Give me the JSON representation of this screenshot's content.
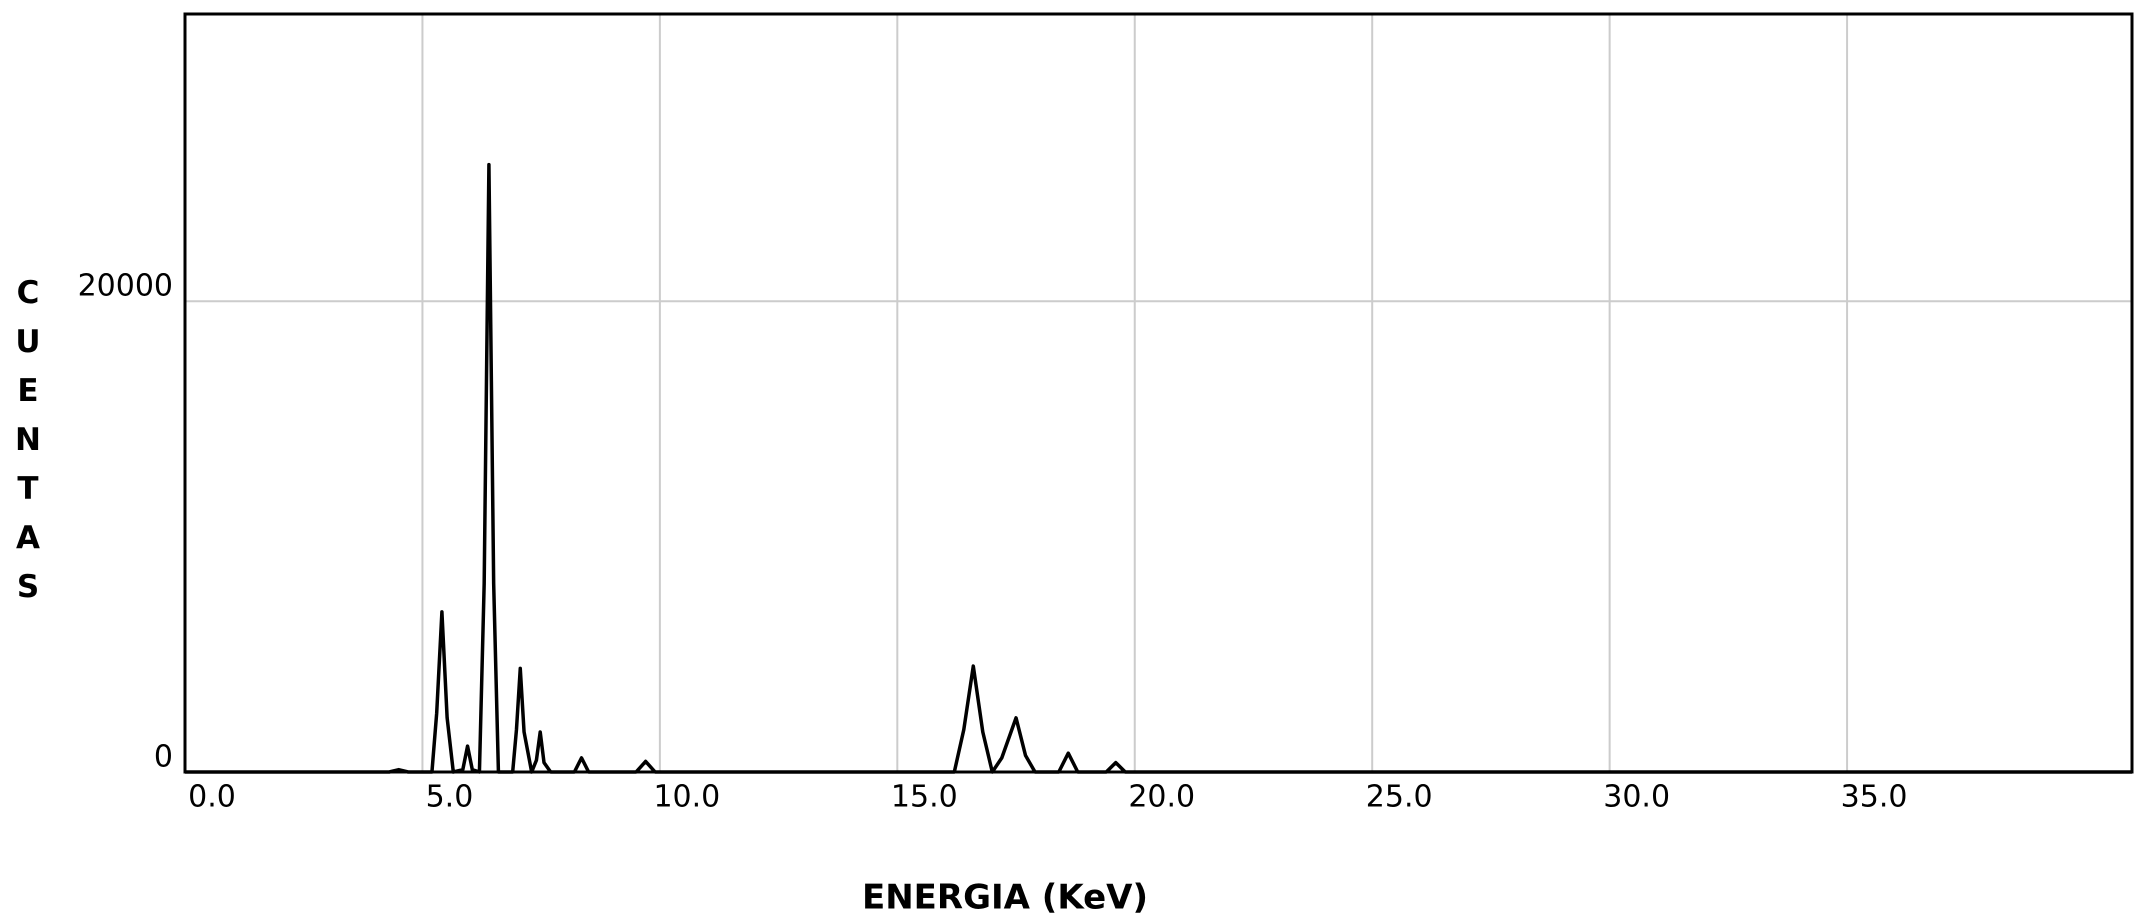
{
  "chart_data": {
    "type": "line",
    "x_label": "ENERGIA (KeV)",
    "y_label": "CUENTAS",
    "x": [
      0,
      4.3,
      4.5,
      4.7,
      5.2,
      5.3,
      5.41,
      5.52,
      5.65,
      5.85,
      5.95,
      6.05,
      6.2,
      6.3,
      6.4,
      6.5,
      6.6,
      6.9,
      6.98,
      7.06,
      7.14,
      7.3,
      7.4,
      7.48,
      7.56,
      7.7,
      8.2,
      8.35,
      8.5,
      9.5,
      9.7,
      9.9,
      11.5,
      16.2,
      16.4,
      16.6,
      16.8,
      17.0,
      17.2,
      17.5,
      17.7,
      17.9,
      18.4,
      18.6,
      18.8,
      19.4,
      19.6,
      19.8,
      41
    ],
    "series": [
      {
        "color": "#000000",
        "values": [
          0,
          0,
          100,
          0,
          0,
          2500,
          6800,
          2300,
          0,
          100,
          1100,
          100,
          0,
          8000,
          25800,
          8000,
          0,
          0,
          1800,
          4400,
          1700,
          0,
          500,
          1700,
          400,
          0,
          0,
          600,
          0,
          0,
          450,
          0,
          0,
          0,
          1800,
          4500,
          1700,
          0,
          600,
          2300,
          700,
          0,
          0,
          800,
          0,
          0,
          400,
          0,
          0
        ]
      }
    ],
    "xlim": [
      0,
      41
    ],
    "ylim": [
      0,
      32200
    ],
    "xticks": [
      {
        "value": 0,
        "label": "0.0"
      },
      {
        "value": 5,
        "label": "5.0"
      },
      {
        "value": 10,
        "label": "10.0"
      },
      {
        "value": 15,
        "label": "15.0"
      },
      {
        "value": 20,
        "label": "20.0"
      },
      {
        "value": 25,
        "label": "25.0"
      },
      {
        "value": 30,
        "label": "30.0"
      },
      {
        "value": 35,
        "label": "35.0"
      }
    ],
    "yticks": [
      0,
      20000
    ],
    "grid": true
  }
}
